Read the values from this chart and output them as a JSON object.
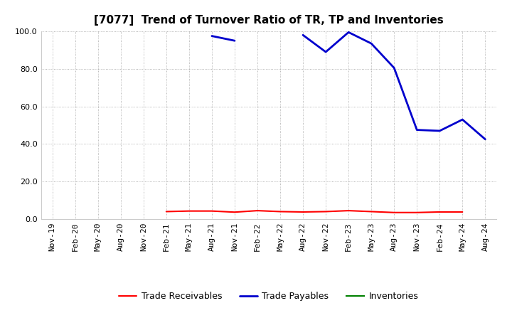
{
  "title": "[7077]  Trend of Turnover Ratio of TR, TP and Inventories",
  "xlabels": [
    "Nov-19",
    "Feb-20",
    "May-20",
    "Aug-20",
    "Nov-20",
    "Feb-21",
    "May-21",
    "Aug-21",
    "Nov-21",
    "Feb-22",
    "May-22",
    "Aug-22",
    "Nov-22",
    "Feb-23",
    "May-23",
    "Aug-23",
    "Nov-23",
    "Feb-24",
    "May-24",
    "Aug-24"
  ],
  "ylim": [
    0,
    100
  ],
  "yticks": [
    0.0,
    20.0,
    40.0,
    60.0,
    80.0,
    100.0
  ],
  "trade_receivables": {
    "label": "Trade Receivables",
    "color": "#ff0000",
    "values": [
      null,
      null,
      null,
      null,
      null,
      4.0,
      4.3,
      4.3,
      3.7,
      4.5,
      4.0,
      3.8,
      4.0,
      4.5,
      4.0,
      3.5,
      3.5,
      3.8,
      3.8,
      null
    ]
  },
  "trade_payables": {
    "label": "Trade Payables",
    "color": "#0000cd",
    "values": [
      null,
      null,
      null,
      null,
      null,
      null,
      null,
      97.5,
      95.0,
      null,
      null,
      98.0,
      89.0,
      99.5,
      93.5,
      80.5,
      47.5,
      47.0,
      53.0,
      42.5
    ]
  },
  "inventories": {
    "label": "Inventories",
    "color": "#008000",
    "values": [
      null,
      null,
      null,
      null,
      null,
      null,
      null,
      null,
      null,
      null,
      null,
      null,
      null,
      null,
      null,
      null,
      null,
      null,
      null,
      null
    ]
  },
  "background_color": "#ffffff",
  "grid_color": "#999999",
  "title_fontsize": 11,
  "legend_fontsize": 9,
  "tick_fontsize": 8
}
